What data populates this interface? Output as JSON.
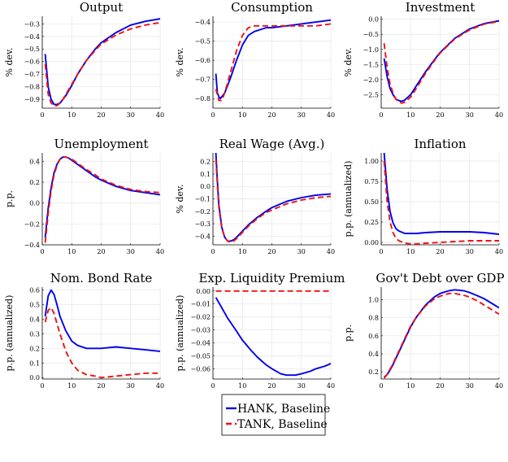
{
  "colors": {
    "hank": "#0000ee",
    "tank": "#ee1111",
    "grid": "#e6e6e6",
    "axis": "#000000"
  },
  "legend": {
    "placement": "bottom-center"
  },
  "chart_data": [
    {
      "type": "line",
      "title": "Output",
      "ylabel": "% dev.",
      "xlim": [
        0,
        40
      ],
      "ylim": [
        -0.97,
        -0.24
      ],
      "xticks": [
        0,
        10,
        20,
        30,
        40
      ],
      "yticks": [
        -0.9,
        -0.8,
        -0.7,
        -0.6,
        -0.5,
        -0.4,
        -0.3
      ],
      "ytick_labels": [
        "−0.9",
        "−0.8",
        "−0.7",
        "−0.6",
        "−0.5",
        "−0.4",
        "−0.3"
      ],
      "grid": true,
      "series": [
        {
          "name": "HANK, Baseline",
          "style": "solid",
          "x": [
            1,
            2,
            3,
            4,
            5,
            6,
            7,
            8,
            10,
            12,
            15,
            18,
            20,
            25,
            30,
            35,
            40
          ],
          "y": [
            -0.54,
            -0.8,
            -0.9,
            -0.94,
            -0.94,
            -0.93,
            -0.9,
            -0.87,
            -0.79,
            -0.7,
            -0.59,
            -0.5,
            -0.45,
            -0.37,
            -0.31,
            -0.28,
            -0.26
          ]
        },
        {
          "name": "TANK, Baseline",
          "style": "dashed",
          "x": [
            1,
            2,
            3,
            4,
            5,
            6,
            7,
            8,
            10,
            12,
            15,
            18,
            20,
            25,
            30,
            35,
            40
          ],
          "y": [
            -0.62,
            -0.86,
            -0.93,
            -0.95,
            -0.95,
            -0.93,
            -0.9,
            -0.86,
            -0.78,
            -0.7,
            -0.59,
            -0.51,
            -0.46,
            -0.39,
            -0.34,
            -0.31,
            -0.29
          ]
        }
      ]
    },
    {
      "type": "line",
      "title": "Consumption",
      "ylabel": "% dev.",
      "xlim": [
        0,
        40
      ],
      "ylim": [
        -0.85,
        -0.37
      ],
      "xticks": [
        0,
        10,
        20,
        30,
        40
      ],
      "yticks": [
        -0.8,
        -0.7,
        -0.6,
        -0.5,
        -0.4
      ],
      "ytick_labels": [
        "−0.8",
        "−0.7",
        "−0.6",
        "−0.5",
        "−0.4"
      ],
      "grid": true,
      "series": [
        {
          "name": "HANK, Baseline",
          "style": "solid",
          "x": [
            1,
            1.5,
            2,
            2.5,
            3,
            4,
            6,
            8,
            10,
            12,
            14,
            16,
            18,
            20,
            25,
            30,
            35,
            40
          ],
          "y": [
            -0.67,
            -0.77,
            -0.79,
            -0.8,
            -0.79,
            -0.77,
            -0.69,
            -0.6,
            -0.52,
            -0.47,
            -0.45,
            -0.44,
            -0.43,
            -0.43,
            -0.42,
            -0.41,
            -0.4,
            -0.39
          ]
        },
        {
          "name": "TANK, Baseline",
          "style": "dashed",
          "x": [
            1,
            2,
            3,
            4,
            6,
            8,
            10,
            12,
            14,
            16,
            18,
            20,
            25,
            30,
            35,
            40
          ],
          "y": [
            -0.75,
            -0.81,
            -0.81,
            -0.77,
            -0.66,
            -0.55,
            -0.47,
            -0.43,
            -0.42,
            -0.42,
            -0.42,
            -0.42,
            -0.42,
            -0.42,
            -0.42,
            -0.41
          ]
        }
      ]
    },
    {
      "type": "line",
      "title": "Investment",
      "ylabel": "% dev.",
      "xlim": [
        0,
        40
      ],
      "ylim": [
        -2.95,
        0.1
      ],
      "xticks": [
        0,
        10,
        20,
        30,
        40
      ],
      "yticks": [
        -2.5,
        -2.0,
        -1.5,
        -1.0,
        -0.5,
        0.0
      ],
      "ytick_labels": [
        "−2.5",
        "−2.0",
        "−1.5",
        "−1.0",
        "−0.5",
        "0.0"
      ],
      "grid": true,
      "series": [
        {
          "name": "HANK, Baseline",
          "style": "solid",
          "x": [
            1,
            2,
            3,
            4,
            5,
            6,
            7,
            8,
            10,
            12,
            15,
            18,
            20,
            25,
            30,
            35,
            40
          ],
          "y": [
            -1.3,
            -1.9,
            -2.3,
            -2.5,
            -2.65,
            -2.7,
            -2.72,
            -2.68,
            -2.5,
            -2.2,
            -1.75,
            -1.35,
            -1.1,
            -0.63,
            -0.32,
            -0.14,
            -0.05
          ]
        },
        {
          "name": "TANK, Baseline",
          "style": "dashed",
          "x": [
            1,
            2,
            3,
            4,
            5,
            6,
            7,
            8,
            10,
            12,
            15,
            18,
            20,
            25,
            30,
            35,
            40
          ],
          "y": [
            -0.8,
            -1.6,
            -2.15,
            -2.45,
            -2.65,
            -2.75,
            -2.78,
            -2.75,
            -2.58,
            -2.28,
            -1.8,
            -1.38,
            -1.12,
            -0.65,
            -0.35,
            -0.16,
            -0.07
          ]
        }
      ]
    },
    {
      "type": "line",
      "title": "Unemployment",
      "ylabel": "p.p.",
      "xlim": [
        0,
        40
      ],
      "ylim": [
        -0.4,
        0.48
      ],
      "xticks": [
        0,
        10,
        20,
        30,
        40
      ],
      "yticks": [
        -0.4,
        -0.2,
        0.0,
        0.2,
        0.4
      ],
      "ytick_labels": [
        "−0.4",
        "−0.2",
        "0.0",
        "0.2",
        "0.4"
      ],
      "grid": true,
      "series": [
        {
          "name": "HANK, Baseline",
          "style": "solid",
          "x": [
            1,
            2,
            3,
            4,
            5,
            6,
            7,
            8,
            9,
            10,
            12,
            15,
            18,
            20,
            25,
            30,
            35,
            40
          ],
          "y": [
            -0.33,
            -0.05,
            0.15,
            0.29,
            0.37,
            0.42,
            0.44,
            0.44,
            0.43,
            0.41,
            0.37,
            0.31,
            0.25,
            0.22,
            0.16,
            0.12,
            0.1,
            0.08
          ]
        },
        {
          "name": "TANK, Baseline",
          "style": "dashed",
          "x": [
            1,
            2,
            3,
            4,
            5,
            6,
            7,
            8,
            9,
            10,
            12,
            15,
            18,
            20,
            25,
            30,
            35,
            40
          ],
          "y": [
            -0.38,
            -0.1,
            0.12,
            0.27,
            0.36,
            0.42,
            0.44,
            0.44,
            0.43,
            0.42,
            0.38,
            0.32,
            0.27,
            0.23,
            0.17,
            0.13,
            0.11,
            0.1
          ]
        }
      ]
    },
    {
      "type": "line",
      "title": "Real Wage (Avg.)",
      "ylabel": "% dev.",
      "xlim": [
        0,
        40
      ],
      "ylim": [
        -0.47,
        0.27
      ],
      "xticks": [
        0,
        10,
        20,
        30,
        40
      ],
      "yticks": [
        -0.4,
        -0.3,
        -0.2,
        -0.1,
        0.0,
        0.1,
        0.2
      ],
      "ytick_labels": [
        "−0.4",
        "−0.3",
        "−0.2",
        "−0.1",
        "0.0",
        "0.1",
        "0.2"
      ],
      "grid": true,
      "series": [
        {
          "name": "HANK, Baseline",
          "style": "solid",
          "x": [
            1,
            1.5,
            2,
            3,
            4,
            5,
            6,
            7,
            8,
            10,
            12,
            15,
            18,
            20,
            25,
            30,
            35,
            40
          ],
          "y": [
            0.27,
            0.05,
            -0.15,
            -0.33,
            -0.41,
            -0.44,
            -0.44,
            -0.43,
            -0.41,
            -0.36,
            -0.31,
            -0.25,
            -0.2,
            -0.17,
            -0.12,
            -0.09,
            -0.07,
            -0.06
          ]
        },
        {
          "name": "TANK, Baseline",
          "style": "dashed",
          "x": [
            1,
            1.5,
            2,
            3,
            4,
            5,
            6,
            7,
            8,
            10,
            12,
            15,
            18,
            20,
            25,
            30,
            35,
            40
          ],
          "y": [
            0.22,
            0.02,
            -0.17,
            -0.34,
            -0.41,
            -0.44,
            -0.45,
            -0.44,
            -0.42,
            -0.37,
            -0.32,
            -0.26,
            -0.21,
            -0.19,
            -0.14,
            -0.11,
            -0.09,
            -0.08
          ]
        }
      ]
    },
    {
      "type": "line",
      "title": "Inflation",
      "ylabel": "p.p. (annualized)",
      "xlim": [
        0,
        40
      ],
      "ylim": [
        -0.03,
        1.1
      ],
      "xticks": [
        0,
        10,
        20,
        30,
        40
      ],
      "yticks": [
        0.0,
        0.25,
        0.5,
        0.75,
        1.0
      ],
      "ytick_labels": [
        "0.00",
        "0.25",
        "0.50",
        "0.75",
        "1.00"
      ],
      "grid": true,
      "series": [
        {
          "name": "HANK, Baseline",
          "style": "solid",
          "x": [
            1,
            2,
            3,
            4,
            5,
            6,
            8,
            10,
            12,
            15,
            20,
            25,
            30,
            35,
            40
          ],
          "y": [
            1.1,
            0.65,
            0.38,
            0.24,
            0.17,
            0.14,
            0.11,
            0.11,
            0.11,
            0.12,
            0.13,
            0.13,
            0.13,
            0.12,
            0.1
          ]
        },
        {
          "name": "TANK, Baseline",
          "style": "dashed",
          "x": [
            1,
            2,
            3,
            4,
            5,
            6,
            8,
            10,
            12,
            15,
            20,
            25,
            30,
            35,
            40
          ],
          "y": [
            1.0,
            0.5,
            0.25,
            0.12,
            0.05,
            0.02,
            -0.01,
            -0.02,
            -0.02,
            -0.01,
            0.0,
            0.01,
            0.02,
            0.02,
            0.02
          ]
        }
      ]
    },
    {
      "type": "line",
      "title": "Nom. Bond Rate",
      "ylabel": "p.p. (annualized)",
      "xlim": [
        0,
        40
      ],
      "ylim": [
        -0.01,
        0.62
      ],
      "xticks": [
        0,
        10,
        20,
        30,
        40
      ],
      "yticks": [
        0.0,
        0.1,
        0.2,
        0.3,
        0.4,
        0.5,
        0.6
      ],
      "ytick_labels": [
        "0.0",
        "0.1",
        "0.2",
        "0.3",
        "0.4",
        "0.5",
        "0.6"
      ],
      "grid": true,
      "series": [
        {
          "name": "HANK, Baseline",
          "style": "solid",
          "x": [
            1,
            2,
            3,
            4,
            5,
            6,
            8,
            10,
            12,
            15,
            18,
            20,
            25,
            30,
            35,
            40
          ],
          "y": [
            0.42,
            0.56,
            0.6,
            0.57,
            0.5,
            0.42,
            0.32,
            0.25,
            0.22,
            0.2,
            0.2,
            0.2,
            0.21,
            0.2,
            0.19,
            0.18
          ]
        },
        {
          "name": "TANK, Baseline",
          "style": "dashed",
          "x": [
            1,
            2,
            3,
            4,
            5,
            6,
            8,
            10,
            12,
            15,
            18,
            20,
            25,
            30,
            35,
            40
          ],
          "y": [
            0.38,
            0.46,
            0.48,
            0.44,
            0.37,
            0.3,
            0.18,
            0.1,
            0.05,
            0.02,
            0.01,
            0.0,
            0.01,
            0.02,
            0.03,
            0.03
          ]
        }
      ]
    },
    {
      "type": "line",
      "title": "Exp. Liquidity Premium",
      "ylabel": "p.p. (annualized)",
      "xlim": [
        0,
        40
      ],
      "ylim": [
        -0.068,
        0.003
      ],
      "xticks": [
        0,
        10,
        20,
        30,
        40
      ],
      "yticks": [
        -0.06,
        -0.05,
        -0.04,
        -0.03,
        -0.02,
        -0.01,
        0.0
      ],
      "ytick_labels": [
        "−0.06",
        "−0.05",
        "−0.04",
        "−0.03",
        "−0.02",
        "−0.01",
        "0.00"
      ],
      "grid": true,
      "series": [
        {
          "name": "HANK, Baseline",
          "style": "solid",
          "x": [
            1,
            3,
            5,
            8,
            10,
            13,
            15,
            18,
            20,
            23,
            25,
            28,
            30,
            33,
            35,
            38,
            40
          ],
          "y": [
            -0.005,
            -0.013,
            -0.021,
            -0.031,
            -0.038,
            -0.046,
            -0.051,
            -0.057,
            -0.06,
            -0.064,
            -0.065,
            -0.065,
            -0.064,
            -0.062,
            -0.06,
            -0.058,
            -0.056
          ]
        },
        {
          "name": "TANK, Baseline",
          "style": "dashed",
          "x": [
            1,
            40
          ],
          "y": [
            0.0,
            0.0
          ]
        }
      ]
    },
    {
      "type": "line",
      "title": "Gov't Debt over GDP",
      "ylabel": "p.p.",
      "xlim": [
        0,
        40
      ],
      "ylim": [
        0.12,
        1.14
      ],
      "xticks": [
        0,
        10,
        20,
        30,
        40
      ],
      "yticks": [
        0.2,
        0.4,
        0.6,
        0.8,
        1.0
      ],
      "ytick_labels": [
        "0.2",
        "0.4",
        "0.6",
        "0.8",
        "1.0"
      ],
      "grid": true,
      "series": [
        {
          "name": "HANK, Baseline",
          "style": "solid",
          "x": [
            1,
            2,
            3,
            4,
            5,
            6,
            8,
            10,
            12,
            15,
            18,
            20,
            23,
            25,
            28,
            30,
            33,
            35,
            38,
            40
          ],
          "y": [
            0.14,
            0.17,
            0.22,
            0.28,
            0.35,
            0.42,
            0.56,
            0.7,
            0.81,
            0.94,
            1.03,
            1.07,
            1.1,
            1.11,
            1.1,
            1.08,
            1.04,
            1.01,
            0.95,
            0.91
          ]
        },
        {
          "name": "TANK, Baseline",
          "style": "dashed",
          "x": [
            1,
            2,
            3,
            4,
            5,
            6,
            8,
            10,
            12,
            15,
            18,
            20,
            23,
            25,
            28,
            30,
            33,
            35,
            38,
            40
          ],
          "y": [
            0.13,
            0.17,
            0.23,
            0.29,
            0.36,
            0.43,
            0.57,
            0.71,
            0.81,
            0.93,
            1.01,
            1.04,
            1.07,
            1.07,
            1.05,
            1.03,
            0.98,
            0.94,
            0.88,
            0.84
          ]
        }
      ]
    }
  ]
}
